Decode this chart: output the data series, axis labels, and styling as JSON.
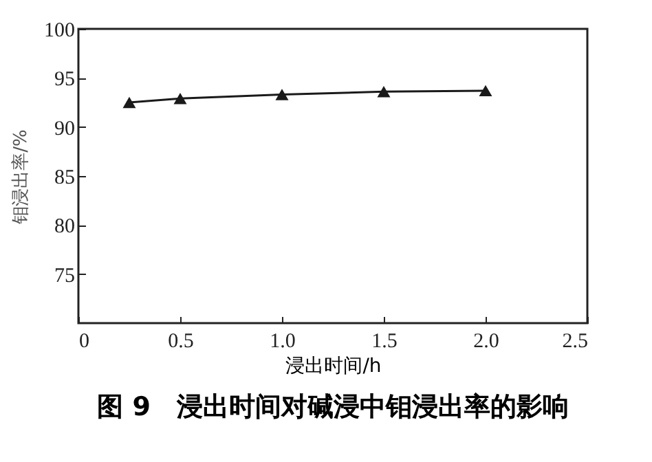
{
  "chart_data": {
    "type": "line",
    "title": "图 9　浸出时间对碱浸中钼浸出率的影响",
    "xlabel": "浸出时间/h",
    "ylabel": "钼浸出率/%",
    "x": [
      0.25,
      0.5,
      1.0,
      1.5,
      2.0
    ],
    "series": [
      {
        "color": "#1a1a1a",
        "values": [
          92.5,
          92.9,
          93.3,
          93.6,
          93.7
        ]
      }
    ],
    "xlim": [
      0,
      2.5
    ],
    "xticks": [
      0,
      {
        "value": 0.5,
        "label": "0.5"
      },
      {
        "value": 1,
        "label": "1.0"
      },
      {
        "value": 1.5,
        "label": "1.5"
      },
      {
        "value": 2,
        "label": "2.0"
      },
      {
        "value": 2.5,
        "label": "2.5"
      }
    ],
    "ylim": [
      70,
      100
    ],
    "yticks": [
      75,
      80,
      85,
      90,
      95,
      100
    ],
    "grid": false,
    "marker": "triangle",
    "line_style": "solid"
  }
}
